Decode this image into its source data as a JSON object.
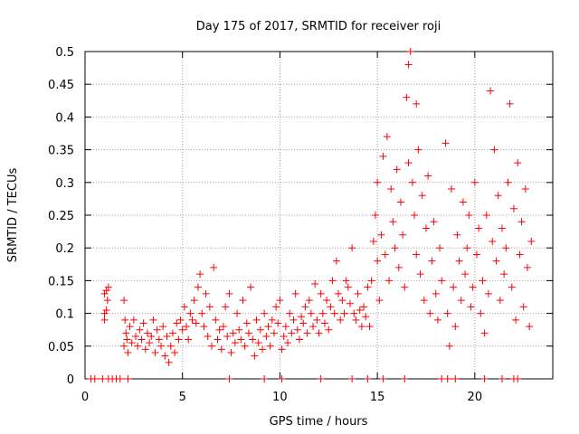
{
  "chart_data": {
    "type": "scatter",
    "title": "Day 175 of 2017, SRMTID for receiver roji",
    "xlabel": "GPS time / hours",
    "ylabel": "SRMTID / TECUs",
    "xlim": [
      0,
      24
    ],
    "ylim": [
      0,
      0.5
    ],
    "grid": true,
    "marker": "+",
    "xticks": [
      0,
      5,
      10,
      15,
      20
    ],
    "xtick_labels": [
      "0",
      "5",
      "10",
      "15",
      "20"
    ],
    "yticks": [
      0,
      0.05,
      0.1,
      0.15,
      0.2,
      0.25,
      0.3,
      0.35,
      0.4,
      0.45,
      0.5
    ],
    "ytick_labels": [
      "0",
      "0.05",
      "0.1",
      "0.15",
      "0.2",
      "0.25",
      "0.3",
      "0.35",
      "0.4",
      "0.45",
      "0.5"
    ],
    "series": [
      {
        "name": "SRMTID",
        "color": "#ff0000",
        "points": [
          [
            0.3,
            0
          ],
          [
            0.5,
            0
          ],
          [
            0.9,
            0
          ],
          [
            1.2,
            0
          ],
          [
            1.4,
            0
          ],
          [
            1.6,
            0
          ],
          [
            1.8,
            0
          ],
          [
            2.2,
            0
          ],
          [
            7.4,
            0
          ],
          [
            9.2,
            0
          ],
          [
            10.1,
            0
          ],
          [
            12.1,
            0
          ],
          [
            13.7,
            0
          ],
          [
            14.5,
            0
          ],
          [
            15.3,
            0
          ],
          [
            16.4,
            0
          ],
          [
            18.3,
            0
          ],
          [
            18.6,
            0
          ],
          [
            19.0,
            0
          ],
          [
            20.5,
            0
          ],
          [
            21.4,
            0
          ],
          [
            22.0,
            0
          ],
          [
            22.2,
            0
          ],
          [
            1.0,
            0.1
          ],
          [
            1.0,
            0.13
          ],
          [
            1.1,
            0.105
          ],
          [
            1.1,
            0.135
          ],
          [
            1.2,
            0.14
          ],
          [
            1.0,
            0.09
          ],
          [
            1.15,
            0.12
          ],
          [
            2.0,
            0.05
          ],
          [
            2.0,
            0.12
          ],
          [
            2.05,
            0.09
          ],
          [
            2.1,
            0.07
          ],
          [
            2.15,
            0.06
          ],
          [
            2.2,
            0.04
          ],
          [
            2.3,
            0.08
          ],
          [
            2.4,
            0.055
          ],
          [
            2.5,
            0.09
          ],
          [
            2.6,
            0.065
          ],
          [
            2.7,
            0.05
          ],
          [
            2.8,
            0.075
          ],
          [
            2.9,
            0.06
          ],
          [
            3.0,
            0.085
          ],
          [
            3.1,
            0.045
          ],
          [
            3.2,
            0.07
          ],
          [
            3.3,
            0.055
          ],
          [
            3.4,
            0.065
          ],
          [
            3.5,
            0.09
          ],
          [
            3.6,
            0.04
          ],
          [
            3.7,
            0.075
          ],
          [
            3.8,
            0.06
          ],
          [
            3.9,
            0.05
          ],
          [
            4.0,
            0.08
          ],
          [
            4.1,
            0.035
          ],
          [
            4.2,
            0.065
          ],
          [
            4.3,
            0.025
          ],
          [
            4.4,
            0.05
          ],
          [
            4.5,
            0.07
          ],
          [
            4.6,
            0.04
          ],
          [
            4.7,
            0.085
          ],
          [
            4.8,
            0.06
          ],
          [
            4.9,
            0.09
          ],
          [
            5.0,
            0.075
          ],
          [
            5.1,
            0.11
          ],
          [
            5.2,
            0.08
          ],
          [
            5.3,
            0.06
          ],
          [
            5.4,
            0.1
          ],
          [
            5.5,
            0.09
          ],
          [
            5.6,
            0.12
          ],
          [
            5.7,
            0.085
          ],
          [
            5.8,
            0.14
          ],
          [
            5.9,
            0.16
          ],
          [
            6.0,
            0.1
          ],
          [
            6.1,
            0.08
          ],
          [
            6.2,
            0.13
          ],
          [
            6.3,
            0.065
          ],
          [
            6.4,
            0.11
          ],
          [
            6.5,
            0.05
          ],
          [
            6.6,
            0.17
          ],
          [
            6.7,
            0.09
          ],
          [
            6.8,
            0.06
          ],
          [
            6.9,
            0.075
          ],
          [
            7.0,
            0.045
          ],
          [
            7.1,
            0.08
          ],
          [
            7.2,
            0.11
          ],
          [
            7.3,
            0.065
          ],
          [
            7.4,
            0.13
          ],
          [
            7.5,
            0.04
          ],
          [
            7.6,
            0.07
          ],
          [
            7.7,
            0.055
          ],
          [
            7.8,
            0.1
          ],
          [
            7.9,
            0.075
          ],
          [
            8.0,
            0.06
          ],
          [
            8.1,
            0.12
          ],
          [
            8.2,
            0.05
          ],
          [
            8.3,
            0.085
          ],
          [
            8.4,
            0.07
          ],
          [
            8.5,
            0.14
          ],
          [
            8.6,
            0.06
          ],
          [
            8.7,
            0.035
          ],
          [
            8.8,
            0.09
          ],
          [
            8.9,
            0.055
          ],
          [
            9.0,
            0.075
          ],
          [
            9.1,
            0.045
          ],
          [
            9.2,
            0.1
          ],
          [
            9.3,
            0.065
          ],
          [
            9.4,
            0.08
          ],
          [
            9.5,
            0.05
          ],
          [
            9.6,
            0.09
          ],
          [
            9.7,
            0.07
          ],
          [
            9.8,
            0.11
          ],
          [
            9.9,
            0.085
          ],
          [
            10.0,
            0.12
          ],
          [
            10.1,
            0.045
          ],
          [
            10.2,
            0.065
          ],
          [
            10.3,
            0.08
          ],
          [
            10.4,
            0.055
          ],
          [
            10.5,
            0.1
          ],
          [
            10.6,
            0.07
          ],
          [
            10.7,
            0.09
          ],
          [
            10.8,
            0.13
          ],
          [
            10.9,
            0.075
          ],
          [
            11.0,
            0.06
          ],
          [
            11.1,
            0.095
          ],
          [
            11.2,
            0.085
          ],
          [
            11.3,
            0.11
          ],
          [
            11.4,
            0.07
          ],
          [
            11.5,
            0.12
          ],
          [
            11.6,
            0.1
          ],
          [
            11.7,
            0.08
          ],
          [
            11.8,
            0.145
          ],
          [
            11.9,
            0.09
          ],
          [
            12.0,
            0.07
          ],
          [
            12.1,
            0.13
          ],
          [
            12.2,
            0.1
          ],
          [
            12.3,
            0.085
          ],
          [
            12.4,
            0.12
          ],
          [
            12.5,
            0.075
          ],
          [
            12.6,
            0.11
          ],
          [
            12.7,
            0.15
          ],
          [
            12.8,
            0.1
          ],
          [
            12.9,
            0.18
          ],
          [
            13.0,
            0.13
          ],
          [
            13.1,
            0.09
          ],
          [
            13.2,
            0.12
          ],
          [
            13.3,
            0.1
          ],
          [
            13.4,
            0.15
          ],
          [
            13.5,
            0.14
          ],
          [
            13.6,
            0.115
          ],
          [
            13.7,
            0.2
          ],
          [
            13.8,
            0.1
          ],
          [
            13.9,
            0.09
          ],
          [
            14.0,
            0.13
          ],
          [
            14.1,
            0.105
          ],
          [
            14.2,
            0.08
          ],
          [
            14.3,
            0.11
          ],
          [
            14.4,
            0.095
          ],
          [
            14.5,
            0.14
          ],
          [
            14.6,
            0.08
          ],
          [
            14.7,
            0.15
          ],
          [
            14.8,
            0.21
          ],
          [
            14.9,
            0.25
          ],
          [
            15.0,
            0.3
          ],
          [
            15.0,
            0.18
          ],
          [
            15.1,
            0.12
          ],
          [
            15.2,
            0.22
          ],
          [
            15.3,
            0.34
          ],
          [
            15.4,
            0.19
          ],
          [
            15.5,
            0.37
          ],
          [
            15.6,
            0.15
          ],
          [
            15.7,
            0.29
          ],
          [
            15.8,
            0.24
          ],
          [
            15.9,
            0.2
          ],
          [
            16.0,
            0.32
          ],
          [
            16.1,
            0.17
          ],
          [
            16.2,
            0.27
          ],
          [
            16.3,
            0.22
          ],
          [
            16.4,
            0.14
          ],
          [
            16.5,
            0.43
          ],
          [
            16.6,
            0.48
          ],
          [
            16.6,
            0.33
          ],
          [
            16.7,
            0.5
          ],
          [
            16.8,
            0.3
          ],
          [
            16.9,
            0.25
          ],
          [
            17.0,
            0.42
          ],
          [
            17.0,
            0.19
          ],
          [
            17.1,
            0.35
          ],
          [
            17.2,
            0.16
          ],
          [
            17.3,
            0.28
          ],
          [
            17.4,
            0.12
          ],
          [
            17.5,
            0.23
          ],
          [
            17.6,
            0.31
          ],
          [
            17.7,
            0.1
          ],
          [
            17.8,
            0.18
          ],
          [
            17.9,
            0.24
          ],
          [
            18.0,
            0.13
          ],
          [
            18.1,
            0.09
          ],
          [
            18.2,
            0.2
          ],
          [
            18.3,
            0.15
          ],
          [
            18.5,
            0.36
          ],
          [
            18.6,
            0.1
          ],
          [
            18.7,
            0.05
          ],
          [
            18.8,
            0.29
          ],
          [
            18.9,
            0.14
          ],
          [
            19.0,
            0.08
          ],
          [
            19.1,
            0.22
          ],
          [
            19.2,
            0.18
          ],
          [
            19.3,
            0.12
          ],
          [
            19.4,
            0.27
          ],
          [
            19.5,
            0.16
          ],
          [
            19.6,
            0.2
          ],
          [
            19.7,
            0.25
          ],
          [
            19.8,
            0.11
          ],
          [
            19.9,
            0.14
          ],
          [
            20.0,
            0.3
          ],
          [
            20.1,
            0.19
          ],
          [
            20.2,
            0.23
          ],
          [
            20.3,
            0.1
          ],
          [
            20.4,
            0.15
          ],
          [
            20.5,
            0.07
          ],
          [
            20.6,
            0.25
          ],
          [
            20.7,
            0.13
          ],
          [
            20.8,
            0.44
          ],
          [
            20.9,
            0.21
          ],
          [
            21.0,
            0.35
          ],
          [
            21.1,
            0.18
          ],
          [
            21.2,
            0.28
          ],
          [
            21.3,
            0.12
          ],
          [
            21.4,
            0.23
          ],
          [
            21.5,
            0.16
          ],
          [
            21.6,
            0.2
          ],
          [
            21.7,
            0.3
          ],
          [
            21.8,
            0.42
          ],
          [
            21.9,
            0.14
          ],
          [
            22.0,
            0.26
          ],
          [
            22.1,
            0.09
          ],
          [
            22.2,
            0.33
          ],
          [
            22.3,
            0.19
          ],
          [
            22.4,
            0.24
          ],
          [
            22.5,
            0.11
          ],
          [
            22.6,
            0.29
          ],
          [
            22.7,
            0.17
          ],
          [
            22.8,
            0.08
          ],
          [
            22.9,
            0.21
          ]
        ]
      }
    ]
  }
}
